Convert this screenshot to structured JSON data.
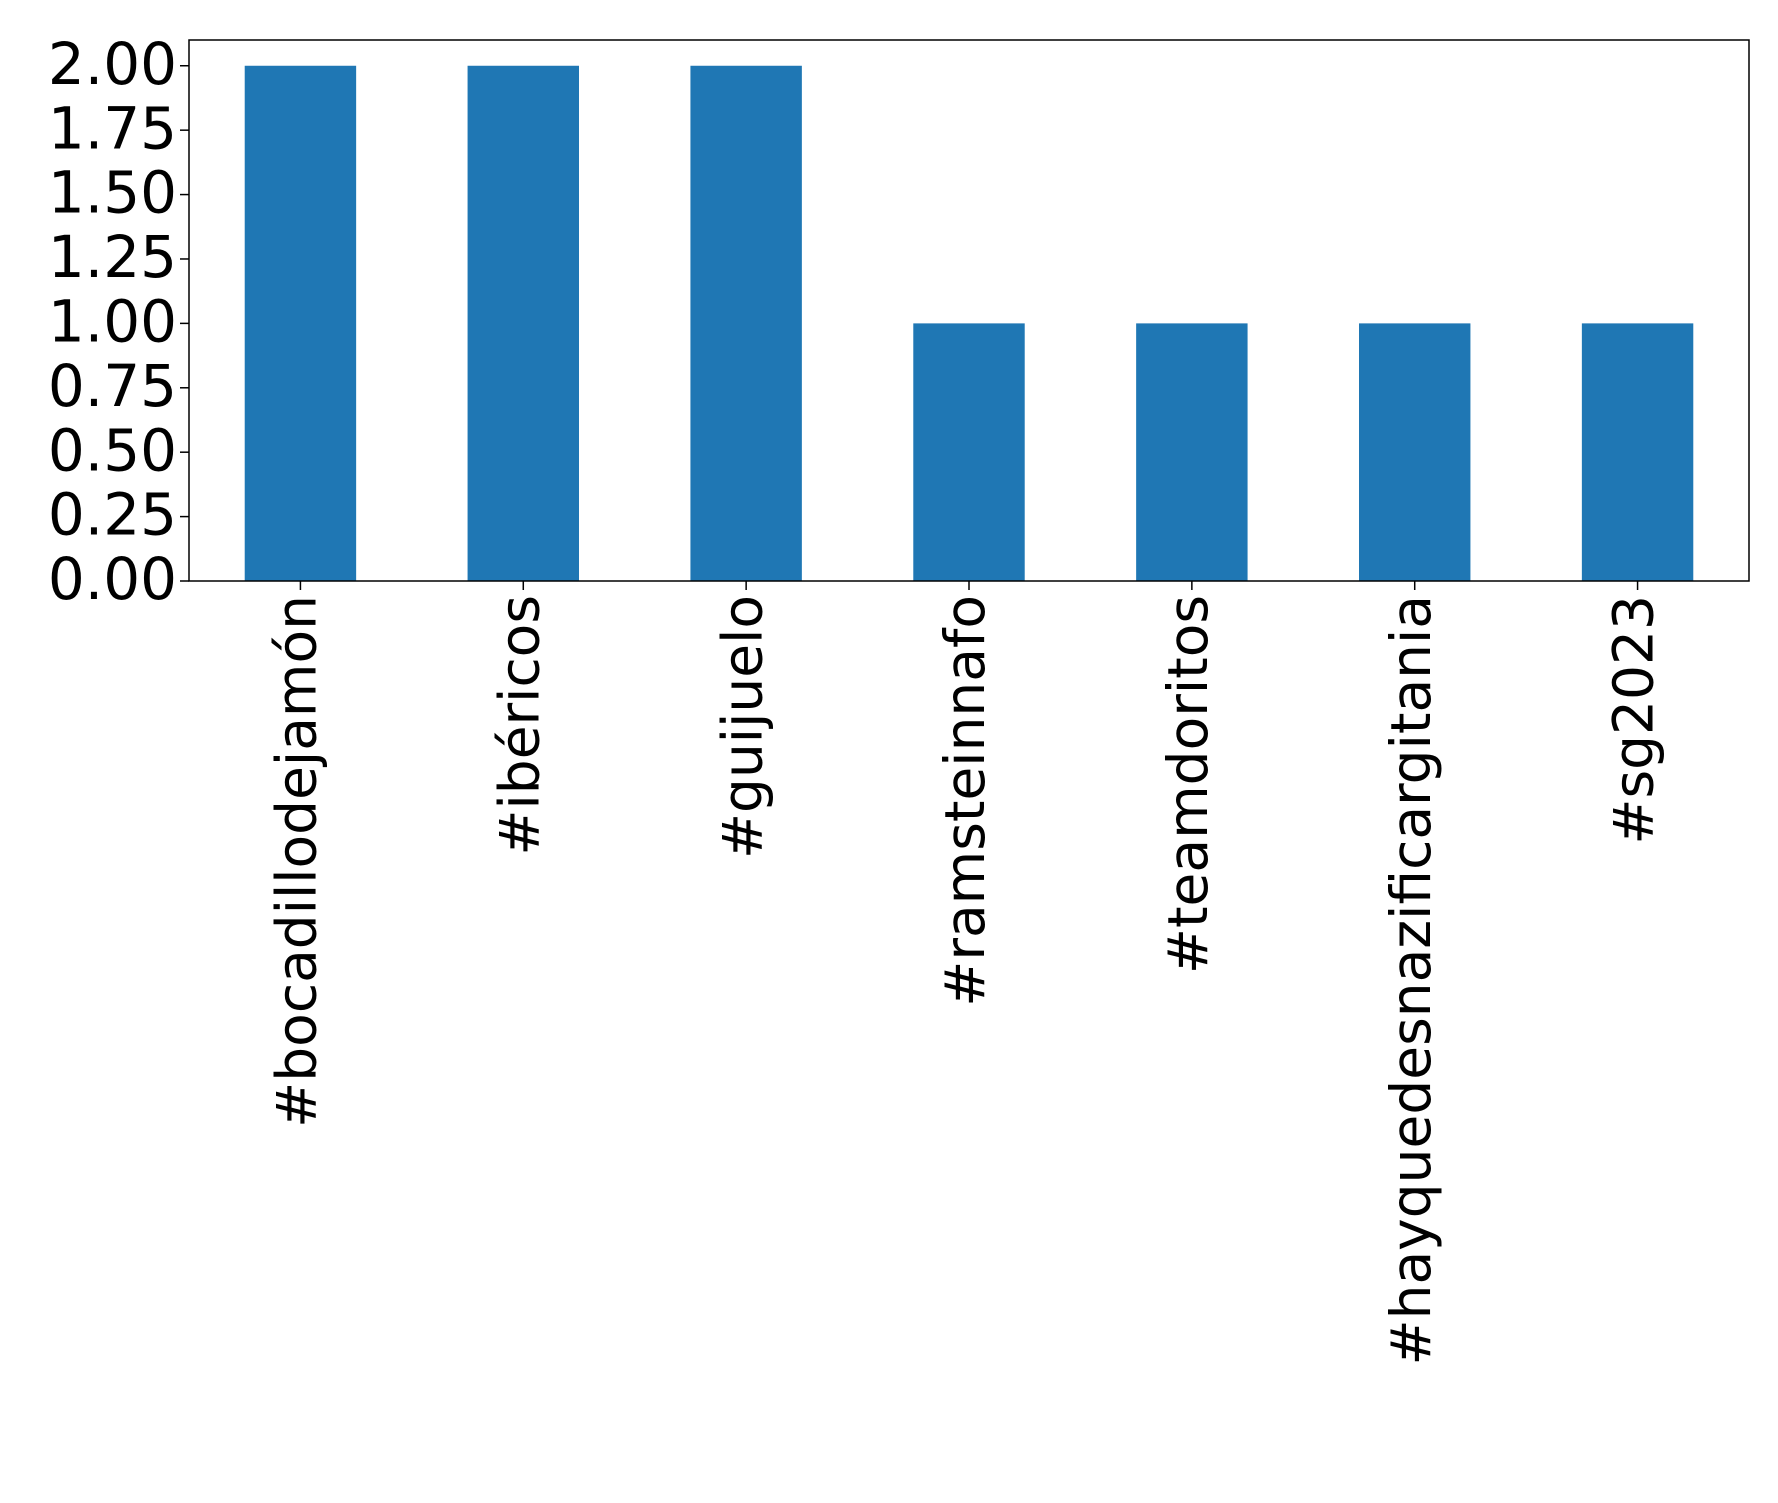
{
  "chart_data": {
    "type": "bar",
    "categories": [
      "#bocadillodejamón",
      "#ibéricos",
      "#guijuelo",
      "#ramsteinnafo",
      "#teamdoritos",
      "#hayquedesnazificargitania",
      "#sg2023"
    ],
    "values": [
      2,
      2,
      2,
      1,
      1,
      1,
      1
    ],
    "color": "#1f77b4",
    "ylim": [
      0,
      2.1
    ],
    "yticks": [
      {
        "value": 0,
        "label": "0.00"
      },
      {
        "value": 0.25,
        "label": "0.25"
      },
      {
        "value": 0.5,
        "label": "0.50"
      },
      {
        "value": 0.75,
        "label": "0.75"
      },
      {
        "value": 1,
        "label": "1.00"
      },
      {
        "value": 1.25,
        "label": "1.25"
      },
      {
        "value": 1.5,
        "label": "1.50"
      },
      {
        "value": 1.75,
        "label": "1.75"
      },
      {
        "value": 2,
        "label": "2.00"
      }
    ],
    "grid": false
  }
}
